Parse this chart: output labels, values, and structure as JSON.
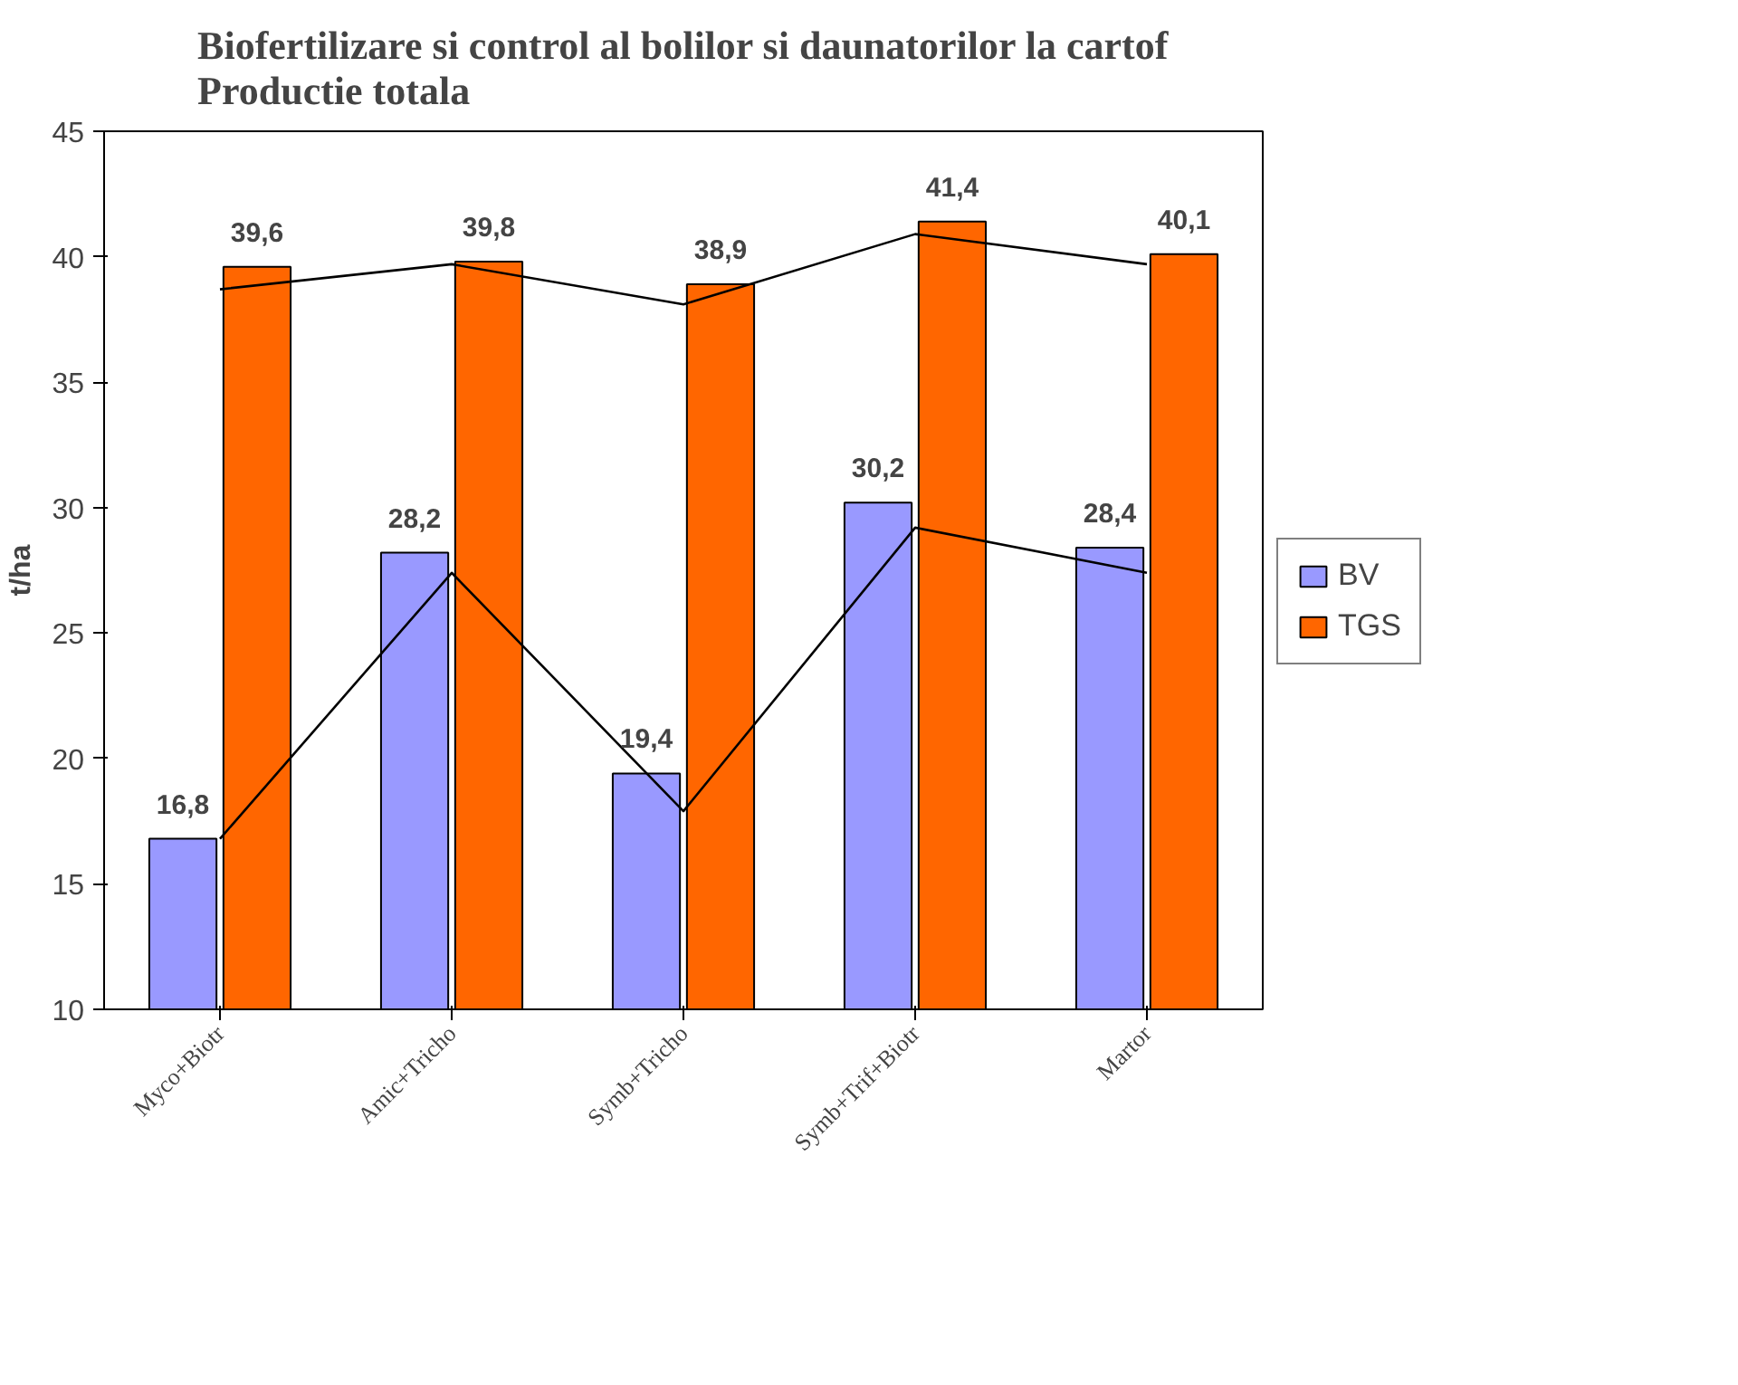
{
  "chart_data": {
    "type": "bar",
    "title": "Biofertilizare si control al bolilor si daunatorilor la cartof\nProductie totala",
    "ylabel": "t/ha",
    "categories": [
      "Myco+Biotr",
      "Amic+Tricho",
      "Symb+Tricho",
      "Symb+Trif+Biotr",
      "Martor"
    ],
    "series": [
      {
        "name": "BV",
        "color": "#9999ff",
        "values": [
          16.8,
          28.2,
          19.4,
          30.2,
          28.4
        ],
        "value_labels": [
          "16,8",
          "28,2",
          "19,4",
          "30,2",
          "28,4"
        ]
      },
      {
        "name": "TGS",
        "color": "#ff6600",
        "values": [
          39.6,
          39.8,
          38.9,
          41.4,
          40.1
        ],
        "value_labels": [
          "39,6",
          "39,8",
          "38,9",
          "41,4",
          "40,1"
        ]
      },
      {
        "type": "line",
        "color": "#000000",
        "values": [
          16.8,
          27.4,
          17.9,
          29.2,
          27.4
        ]
      },
      {
        "type": "line",
        "color": "#000000",
        "values": [
          38.7,
          39.7,
          38.1,
          40.9,
          39.7
        ]
      }
    ],
    "ylim": [
      10,
      45
    ],
    "yticks": [
      10,
      15,
      20,
      25,
      30,
      35,
      40,
      45
    ],
    "grid": false,
    "legend": "right"
  }
}
